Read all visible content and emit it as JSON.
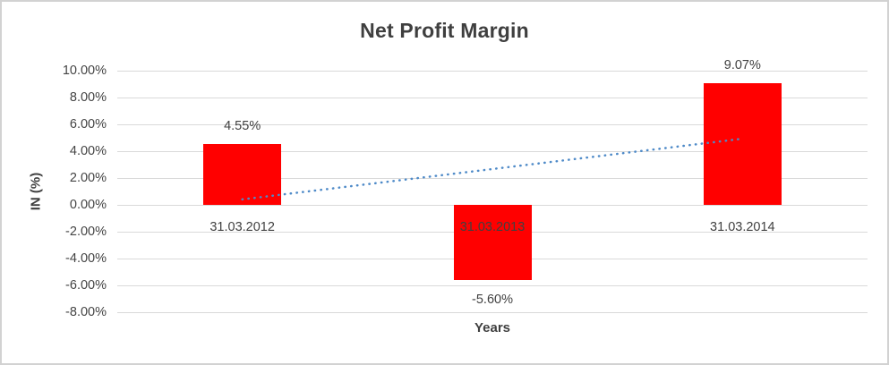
{
  "window": {
    "background_color": "#FFFFFF",
    "border_color": "#D2D2D2"
  },
  "chart_data": {
    "type": "bar",
    "title": "Net Profit Margin",
    "xlabel": "Years",
    "ylabel": "IN (%)",
    "categories": [
      "31.03.2012",
      "31.03.2013",
      "31.03.2014"
    ],
    "values": [
      4.55,
      -5.6,
      9.07
    ],
    "data_labels": [
      "4.55%",
      "-5.60%",
      "9.07%"
    ],
    "y_tick_values": [
      10,
      8,
      6,
      4,
      2,
      0,
      -2,
      -4,
      -6,
      -8
    ],
    "y_tick_labels": [
      "10.00%",
      "8.00%",
      "6.00%",
      "4.00%",
      "2.00%",
      "0.00%",
      "-2.00%",
      "-4.00%",
      "-6.00%",
      "-8.00%"
    ],
    "ylim": [
      -8,
      10
    ],
    "grid": true,
    "legend": "none",
    "bar_color": "#FF0000",
    "gridline_color": "#D9D9D9",
    "text_color": "#404040",
    "trendline": {
      "type": "linear",
      "style": "dotted",
      "color": "#4E8AC8",
      "start_value": 0.41,
      "end_value": 4.93
    }
  }
}
